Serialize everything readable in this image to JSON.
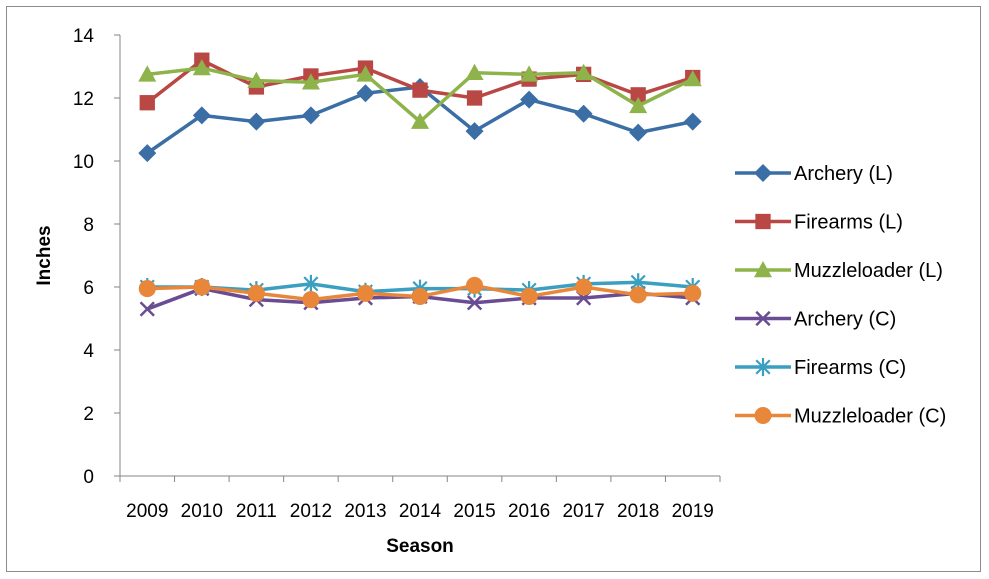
{
  "chart_data": {
    "type": "line",
    "title": "",
    "xlabel": "Season",
    "ylabel": "Inches",
    "ylim": [
      0,
      14
    ],
    "ytick_step": 2,
    "grid": false,
    "legend_position": "right",
    "categories": [
      "2009",
      "2010",
      "2011",
      "2012",
      "2013",
      "2014",
      "2015",
      "2016",
      "2017",
      "2018",
      "2019"
    ],
    "series": [
      {
        "name": "Archery (L)",
        "color": "#3a6ea5",
        "marker": "diamond",
        "values": [
          10.25,
          11.45,
          11.25,
          11.45,
          12.15,
          12.35,
          10.95,
          11.95,
          11.5,
          10.9,
          11.25
        ]
      },
      {
        "name": "Firearms (L)",
        "color": "#b94744",
        "marker": "square",
        "values": [
          11.85,
          13.2,
          12.35,
          12.7,
          12.95,
          12.25,
          12.0,
          12.6,
          12.75,
          12.1,
          12.65
        ]
      },
      {
        "name": "Muzzleloader (L)",
        "color": "#8db34a",
        "marker": "triangle",
        "values": [
          12.75,
          12.95,
          12.55,
          12.5,
          12.75,
          11.25,
          12.8,
          12.75,
          12.8,
          11.75,
          12.6
        ]
      },
      {
        "name": "Archery (C)",
        "color": "#6a4c93",
        "marker": "x",
        "values": [
          5.3,
          5.95,
          5.6,
          5.5,
          5.65,
          5.7,
          5.5,
          5.65,
          5.65,
          5.8,
          5.65
        ]
      },
      {
        "name": "Firearms (C)",
        "color": "#3a9fc0",
        "marker": "star",
        "values": [
          6.0,
          6.0,
          5.9,
          6.1,
          5.85,
          5.95,
          5.95,
          5.9,
          6.1,
          6.15,
          6.0
        ]
      },
      {
        "name": "Muzzleloader (C)",
        "color": "#e8873a",
        "marker": "circle",
        "values": [
          5.95,
          6.0,
          5.8,
          5.6,
          5.8,
          5.7,
          6.05,
          5.7,
          6.0,
          5.75,
          5.8
        ]
      }
    ]
  }
}
